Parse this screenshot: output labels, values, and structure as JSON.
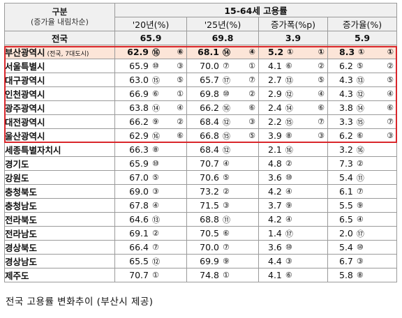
{
  "header": {
    "group_label": "구분",
    "group_sub": "(증가율 내림차순)",
    "title": "15-64세 고용률",
    "cols": [
      "'20년(%)",
      "'25년(%)",
      "증가폭(%p)",
      "증가율(%)"
    ]
  },
  "national": {
    "label": "전국",
    "v20": "65.9",
    "v25": "69.8",
    "pp": "3.9",
    "rate": "5.9"
  },
  "rows": [
    {
      "name": "부산광역시",
      "note": "(전국, 7대도시)",
      "highlight": true,
      "v20": "62.9",
      "v20r": "⑯",
      "v20r2": "⑥",
      "v25": "68.1",
      "v25r": "⑭",
      "v25r2": "④",
      "pp": "5.2",
      "ppr": "①",
      "ppr2": "①",
      "rate": "8.3",
      "rater": "①",
      "rater2": "①"
    },
    {
      "name": "서울특별시",
      "note": "",
      "v20": "65.9",
      "v20r": "⑩",
      "v20r2": "③",
      "v25": "70.0",
      "v25r": "⑦",
      "v25r2": "①",
      "pp": "4.1",
      "ppr": "⑥",
      "ppr2": "②",
      "rate": "6.2",
      "rater": "⑤",
      "rater2": "②"
    },
    {
      "name": "대구광역시",
      "note": "",
      "v20": "63.0",
      "v20r": "⑮",
      "v20r2": "⑤",
      "v25": "65.7",
      "v25r": "⑰",
      "v25r2": "⑦",
      "pp": "2.7",
      "ppr": "⑬",
      "ppr2": "⑤",
      "rate": "4.3",
      "rater": "⑬",
      "rater2": "⑤"
    },
    {
      "name": "인천광역시",
      "note": "",
      "v20": "66.9",
      "v20r": "⑥",
      "v20r2": "①",
      "v25": "69.8",
      "v25r": "⑩",
      "v25r2": "②",
      "pp": "2.9",
      "ppr": "⑫",
      "ppr2": "④",
      "rate": "4.3",
      "rater": "⑫",
      "rater2": "④"
    },
    {
      "name": "광주광역시",
      "note": "",
      "v20": "63.8",
      "v20r": "⑭",
      "v20r2": "④",
      "v25": "66.2",
      "v25r": "⑯",
      "v25r2": "⑥",
      "pp": "2.4",
      "ppr": "⑭",
      "ppr2": "⑥",
      "rate": "3.8",
      "rater": "⑭",
      "rater2": "⑥"
    },
    {
      "name": "대전광역시",
      "note": "",
      "v20": "66.2",
      "v20r": "⑨",
      "v20r2": "②",
      "v25": "68.4",
      "v25r": "⑫",
      "v25r2": "③",
      "pp": "2.2",
      "ppr": "⑮",
      "ppr2": "⑦",
      "rate": "3.3",
      "rater": "⑮",
      "rater2": "⑦"
    },
    {
      "name": "울산광역시",
      "note": "",
      "v20": "62.9",
      "v20r": "⑯",
      "v20r2": "⑥",
      "v25": "66.8",
      "v25r": "⑮",
      "v25r2": "⑤",
      "pp": "3.9",
      "ppr": "⑧",
      "ppr2": "③",
      "rate": "6.2",
      "rater": "⑥",
      "rater2": "③"
    },
    {
      "name": "세종특별자치시",
      "note": "",
      "v20": "66.3",
      "v20r": "⑧",
      "v20r2": "",
      "v25": "68.4",
      "v25r": "⑫",
      "v25r2": "",
      "pp": "2.1",
      "ppr": "⑯",
      "ppr2": "",
      "rate": "3.2",
      "rater": "⑯",
      "rater2": ""
    },
    {
      "name": "경기도",
      "note": "",
      "v20": "65.9",
      "v20r": "⑩",
      "v20r2": "",
      "v25": "70.7",
      "v25r": "④",
      "v25r2": "",
      "pp": "4.8",
      "ppr": "②",
      "ppr2": "",
      "rate": "7.3",
      "rater": "②",
      "rater2": ""
    },
    {
      "name": "강원도",
      "note": "",
      "v20": "67.0",
      "v20r": "⑤",
      "v20r2": "",
      "v25": "70.6",
      "v25r": "⑤",
      "v25r2": "",
      "pp": "3.6",
      "ppr": "⑩",
      "ppr2": "",
      "rate": "5.4",
      "rater": "⑪",
      "rater2": ""
    },
    {
      "name": "충청북도",
      "note": "",
      "v20": "69.0",
      "v20r": "③",
      "v20r2": "",
      "v25": "73.2",
      "v25r": "②",
      "v25r2": "",
      "pp": "4.2",
      "ppr": "④",
      "ppr2": "",
      "rate": "6.1",
      "rater": "⑦",
      "rater2": ""
    },
    {
      "name": "충청남도",
      "note": "",
      "v20": "67.8",
      "v20r": "④",
      "v20r2": "",
      "v25": "71.5",
      "v25r": "③",
      "v25r2": "",
      "pp": "3.7",
      "ppr": "⑨",
      "ppr2": "",
      "rate": "5.5",
      "rater": "⑨",
      "rater2": ""
    },
    {
      "name": "전라북도",
      "note": "",
      "v20": "64.6",
      "v20r": "⑬",
      "v20r2": "",
      "v25": "68.8",
      "v25r": "⑪",
      "v25r2": "",
      "pp": "4.2",
      "ppr": "④",
      "ppr2": "",
      "rate": "6.5",
      "rater": "④",
      "rater2": ""
    },
    {
      "name": "전라남도",
      "note": "",
      "v20": "69.1",
      "v20r": "②",
      "v20r2": "",
      "v25": "70.5",
      "v25r": "⑥",
      "v25r2": "",
      "pp": "1.4",
      "ppr": "⑰",
      "ppr2": "",
      "rate": "2.0",
      "rater": "⑰",
      "rater2": ""
    },
    {
      "name": "경상북도",
      "note": "",
      "v20": "66.4",
      "v20r": "⑦",
      "v20r2": "",
      "v25": "70.0",
      "v25r": "⑦",
      "v25r2": "",
      "pp": "3.6",
      "ppr": "⑩",
      "ppr2": "",
      "rate": "5.4",
      "rater": "⑩",
      "rater2": ""
    },
    {
      "name": "경상남도",
      "note": "",
      "v20": "65.5",
      "v20r": "⑫",
      "v20r2": "",
      "v25": "69.9",
      "v25r": "⑨",
      "v25r2": "",
      "pp": "4.4",
      "ppr": "③",
      "ppr2": "",
      "rate": "6.7",
      "rater": "③",
      "rater2": ""
    },
    {
      "name": "제주도",
      "note": "",
      "v20": "70.7",
      "v20r": "①",
      "v20r2": "",
      "v25": "74.8",
      "v25r": "①",
      "v25r2": "",
      "pp": "4.1",
      "ppr": "⑥",
      "ppr2": "",
      "rate": "5.8",
      "rater": "⑧",
      "rater2": ""
    }
  ],
  "caption": "전국 고용률 변화추이 (부산시 제공)",
  "colors": {
    "highlight_bg": "#fce5d8",
    "red_border": "#d9262b",
    "header_bg": "#f0f0f0"
  }
}
